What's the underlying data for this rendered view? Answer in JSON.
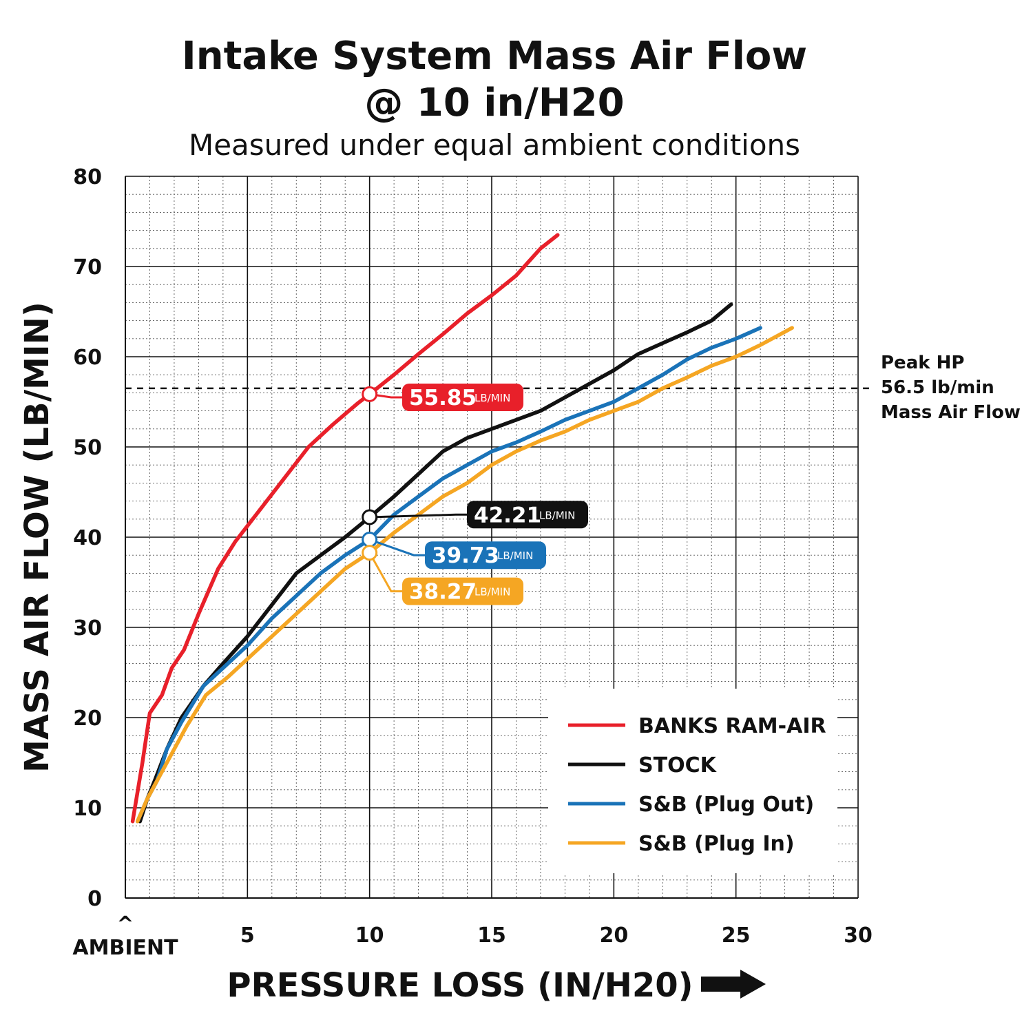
{
  "chart_data": {
    "type": "line",
    "title": "Intake System Mass Air Flow",
    "title_line2": "@ 10 in/H20",
    "subtitle": "Measured under equal ambient conditions",
    "xlabel": "PRESSURE LOSS (IN/H20)",
    "ylabel": "MASS AIR FLOW (LB/MIN)",
    "xlim": [
      0,
      30
    ],
    "ylim": [
      0,
      80
    ],
    "x_ticks": [
      "5",
      "10",
      "15",
      "20",
      "25",
      "30"
    ],
    "x_ambient_caret": "^",
    "x_ambient_label": "AMBIENT",
    "y_ticks": [
      "0",
      "10",
      "20",
      "30",
      "40",
      "50",
      "60",
      "70",
      "80"
    ],
    "grid": true,
    "legend_position": "bottom-right",
    "reference_line": {
      "y": 56.5,
      "label_lines": [
        "Peak HP",
        "56.5 lb/min",
        "Mass Air Flow"
      ]
    },
    "series": [
      {
        "name": "BANKS RAM-AIR",
        "color": "#e8202a",
        "points": [
          [
            0.3,
            8.5
          ],
          [
            0.7,
            15
          ],
          [
            1.0,
            20.5
          ],
          [
            1.5,
            22.5
          ],
          [
            1.9,
            25.5
          ],
          [
            2.4,
            27.5
          ],
          [
            3.0,
            31.5
          ],
          [
            3.8,
            36.5
          ],
          [
            4.5,
            39.5
          ],
          [
            5.5,
            43
          ],
          [
            6.5,
            46.5
          ],
          [
            7.5,
            50
          ],
          [
            8.5,
            52.5
          ],
          [
            9.5,
            54.8
          ],
          [
            10,
            55.85
          ],
          [
            11,
            58
          ],
          [
            12,
            60.3
          ],
          [
            13,
            62.5
          ],
          [
            14,
            64.8
          ],
          [
            15,
            66.8
          ],
          [
            16,
            69
          ],
          [
            17,
            72
          ],
          [
            17.7,
            73.5
          ]
        ]
      },
      {
        "name": "STOCK",
        "color": "#111111",
        "points": [
          [
            0.6,
            8.5
          ],
          [
            0.9,
            11
          ],
          [
            1.2,
            13
          ],
          [
            1.7,
            16.5
          ],
          [
            2.3,
            20
          ],
          [
            3.2,
            23.5
          ],
          [
            4.0,
            26
          ],
          [
            5.0,
            29
          ],
          [
            6.0,
            32.5
          ],
          [
            7.0,
            36
          ],
          [
            8.0,
            38
          ],
          [
            9.0,
            40
          ],
          [
            10,
            42.21
          ],
          [
            11,
            44.5
          ],
          [
            12,
            47
          ],
          [
            13,
            49.5
          ],
          [
            14,
            51
          ],
          [
            15,
            52
          ],
          [
            16,
            53
          ],
          [
            17,
            54
          ],
          [
            18,
            55.5
          ],
          [
            19,
            57
          ],
          [
            20,
            58.5
          ],
          [
            21,
            60.3
          ],
          [
            22,
            61.5
          ],
          [
            23,
            62.7
          ],
          [
            24,
            64
          ],
          [
            24.8,
            65.8
          ]
        ]
      },
      {
        "name": "S&B (Plug Out)",
        "color": "#1a73b8",
        "points": [
          [
            0.5,
            8.5
          ],
          [
            0.9,
            11
          ],
          [
            1.3,
            13
          ],
          [
            1.7,
            16.5
          ],
          [
            2.3,
            19.5
          ],
          [
            3.2,
            23.5
          ],
          [
            4.0,
            25.5
          ],
          [
            5.0,
            28
          ],
          [
            6.0,
            31
          ],
          [
            7.0,
            33.5
          ],
          [
            8.0,
            36
          ],
          [
            9.0,
            38
          ],
          [
            10,
            39.73
          ],
          [
            11,
            42.5
          ],
          [
            12,
            44.5
          ],
          [
            13,
            46.5
          ],
          [
            14,
            48
          ],
          [
            15,
            49.5
          ],
          [
            16,
            50.5
          ],
          [
            17,
            51.7
          ],
          [
            18,
            53
          ],
          [
            19,
            54
          ],
          [
            20,
            55
          ],
          [
            21,
            56.5
          ],
          [
            22,
            58
          ],
          [
            23,
            59.7
          ],
          [
            24,
            61
          ],
          [
            25,
            62
          ],
          [
            26,
            63.2
          ]
        ]
      },
      {
        "name": "S&B (Plug In)",
        "color": "#f5a623",
        "points": [
          [
            0.5,
            8.5
          ],
          [
            0.9,
            11
          ],
          [
            1.3,
            13
          ],
          [
            1.8,
            15.5
          ],
          [
            2.5,
            19
          ],
          [
            3.3,
            22.5
          ],
          [
            4.2,
            24.5
          ],
          [
            5.0,
            26.5
          ],
          [
            6.0,
            29
          ],
          [
            7.0,
            31.5
          ],
          [
            8.0,
            34
          ],
          [
            9.0,
            36.5
          ],
          [
            10,
            38.27
          ],
          [
            11,
            40.5
          ],
          [
            12,
            42.5
          ],
          [
            13,
            44.5
          ],
          [
            14,
            46
          ],
          [
            15,
            48
          ],
          [
            16,
            49.5
          ],
          [
            17,
            50.7
          ],
          [
            18,
            51.7
          ],
          [
            19,
            53
          ],
          [
            20,
            54
          ],
          [
            21,
            55
          ],
          [
            22,
            56.5
          ],
          [
            23,
            57.7
          ],
          [
            24,
            59
          ],
          [
            25,
            60
          ],
          [
            26,
            61.3
          ],
          [
            27.3,
            63.2
          ]
        ]
      }
    ],
    "callouts": [
      {
        "series": "BANKS RAM-AIR",
        "x": 10,
        "y": 55.85,
        "value": "55.85",
        "unit": "LB/MIN",
        "label_y": 55.5,
        "color": "#e8202a"
      },
      {
        "series": "STOCK",
        "x": 10,
        "y": 42.21,
        "value": "42.21",
        "unit": "LB/MIN",
        "label_y": 42.5,
        "color": "#111111"
      },
      {
        "series": "S&B (Plug Out)",
        "x": 10,
        "y": 39.73,
        "value": "39.73",
        "unit": "LB/MIN",
        "label_y": 38.0,
        "color": "#1a73b8"
      },
      {
        "series": "S&B (Plug In)",
        "x": 10,
        "y": 38.27,
        "value": "38.27",
        "unit": "LB/MIN",
        "label_y": 34.0,
        "color": "#f5a623"
      }
    ]
  }
}
